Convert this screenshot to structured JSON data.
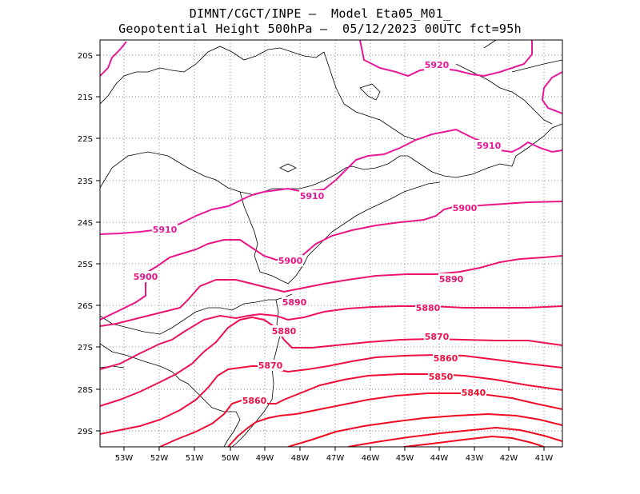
{
  "title_line1": "DIMNT/CGCT/INPE –  Model Eta05_M01_",
  "title_line2": "Geopotential Height 500hPa –  05/12/2023 00UTC fct=95h",
  "map": {
    "lon_ticks": [
      "53W",
      "52W",
      "51W",
      "50W",
      "49W",
      "48W",
      "47W",
      "46W",
      "45W",
      "44W",
      "43W",
      "42W",
      "41W"
    ],
    "lat_ticks": [
      "20S",
      "21S",
      "22S",
      "23S",
      "24S",
      "25S",
      "26S",
      "27S",
      "28S",
      "29S"
    ],
    "contour_labels": [
      "5920",
      "5910",
      "5910",
      "5910",
      "5900",
      "5900",
      "5900",
      "5890",
      "5890",
      "5880",
      "5880",
      "5870",
      "5870",
      "5860",
      "5860",
      "5850",
      "5840"
    ],
    "colors": {
      "contour_5920": "#e8189a",
      "contour_5910": "#e8189a",
      "contour_5900": "#ea1585",
      "contour_5890": "#ea1470",
      "contour_5880": "#ec1360",
      "contour_5870": "#ee1150",
      "contour_5860": "#ef1040",
      "contour_5850": "#f00e35",
      "contour_5840": "#f00d2a",
      "contour_low": "#f00c20",
      "border": "#000000",
      "grid": "#888888"
    }
  }
}
